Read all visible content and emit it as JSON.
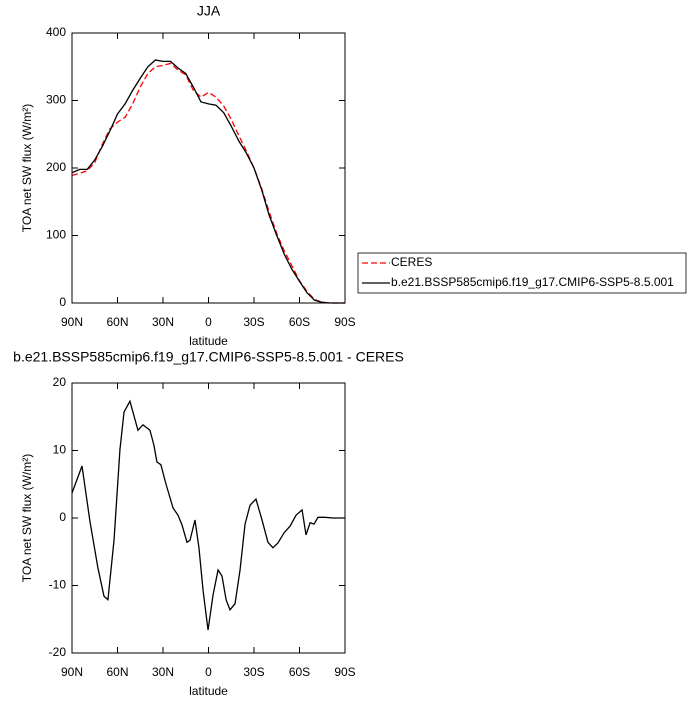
{
  "chart_data": [
    {
      "type": "line",
      "title": "JJA",
      "xlabel": "latitude",
      "ylabel": "TOA net SW flux (W/m²)",
      "x": [
        90,
        85,
        80,
        75,
        70,
        65,
        60,
        55,
        50,
        45,
        40,
        35,
        30,
        25,
        20,
        15,
        10,
        5,
        0,
        -5,
        -10,
        -15,
        -20,
        -25,
        -30,
        -35,
        -40,
        -45,
        -50,
        -55,
        -60,
        -65,
        -70,
        -75,
        -80,
        -85,
        -90
      ],
      "series": [
        {
          "name": "CERES",
          "color": "#ff0000",
          "style": "dashed",
          "values": [
            189,
            192,
            196,
            208,
            235,
            258,
            268,
            275,
            295,
            320,
            340,
            350,
            352,
            355,
            345,
            338,
            315,
            305,
            312,
            305,
            292,
            272,
            248,
            225,
            200,
            170,
            135,
            103,
            77,
            55,
            33,
            17,
            5,
            1,
            0,
            0,
            0
          ]
        },
        {
          "name": "b.e21.BSSP585cmip6.f19_g17.CMIP6-SSP5-8.5.001",
          "color": "#000000",
          "style": "solid",
          "values": [
            193,
            198,
            198,
            212,
            232,
            255,
            280,
            295,
            315,
            333,
            350,
            360,
            358,
            358,
            348,
            340,
            320,
            298,
            295,
            293,
            282,
            262,
            240,
            222,
            200,
            168,
            130,
            100,
            72,
            50,
            32,
            15,
            4,
            1,
            0,
            0,
            0
          ]
        }
      ],
      "xlim": [
        90,
        -90
      ],
      "xticks": [
        {
          "value": 90,
          "label": "90N"
        },
        {
          "value": 60,
          "label": "60N"
        },
        {
          "value": 30,
          "label": "30N"
        },
        0,
        {
          "value": -30,
          "label": "30S"
        },
        {
          "value": -60,
          "label": "60S"
        },
        {
          "value": -90,
          "label": "90S"
        }
      ],
      "ylim": [
        0,
        400
      ],
      "yticks": [
        0,
        100,
        200,
        300,
        400
      ],
      "legend": "right"
    },
    {
      "type": "line",
      "title": "b.e21.BSSP585cmip6.f19_g17.CMIP6-SSP5-8.5.001 - CERES",
      "xlabel": "latitude",
      "ylabel": "TOA net SW flux (W/m²)",
      "x": [
        90,
        83.4,
        78.1,
        72.9,
        68.9,
        66.3,
        62.3,
        58.4,
        55.7,
        51.8,
        46.5,
        43.2,
        38.6,
        36.0,
        34.0,
        31.4,
        28.0,
        23.4,
        20.1,
        17.5,
        14.2,
        12.2,
        8.9,
        6.3,
        3.6,
        0.3,
        -3.0,
        -6.3,
        -8.9,
        -11.6,
        -14.2,
        -17.5,
        -20.8,
        -24.1,
        -27.4,
        -31.3,
        -35.3,
        -39.2,
        -42.5,
        -45.8,
        -49.8,
        -53.8,
        -57.7,
        -61.7,
        -64.3,
        -67.0,
        -69.6,
        -72.2,
        -76.8,
        -82.1,
        -90
      ],
      "series": [
        {
          "color": "#000000",
          "style": "solid",
          "values": [
            3.7,
            7.7,
            -0.6,
            -7.4,
            -11.6,
            -12.1,
            -3.3,
            10.1,
            15.7,
            17.3,
            13.0,
            13.8,
            13.0,
            10.8,
            8.3,
            7.9,
            5.0,
            1.5,
            0.4,
            -1.0,
            -3.6,
            -3.3,
            -0.3,
            -4.4,
            -10.7,
            -16.6,
            -11.4,
            -7.7,
            -8.6,
            -12.1,
            -13.6,
            -12.7,
            -7.7,
            -0.9,
            1.9,
            2.8,
            -0.3,
            -3.6,
            -4.4,
            -3.7,
            -2.2,
            -1.2,
            0.4,
            1.2,
            -2.5,
            -0.7,
            -0.9,
            0.1,
            0.1,
            0,
            0
          ]
        }
      ],
      "xlim": [
        90,
        -90
      ],
      "xticks": [
        {
          "value": 90,
          "label": "90N"
        },
        {
          "value": 60,
          "label": "60N"
        },
        {
          "value": 30,
          "label": "30N"
        },
        0,
        {
          "value": -30,
          "label": "30S"
        },
        {
          "value": -60,
          "label": "60S"
        },
        {
          "value": -90,
          "label": "90S"
        }
      ],
      "ylim": [
        -20,
        20
      ],
      "yticks": [
        -20,
        -10,
        0,
        10,
        20
      ]
    }
  ]
}
